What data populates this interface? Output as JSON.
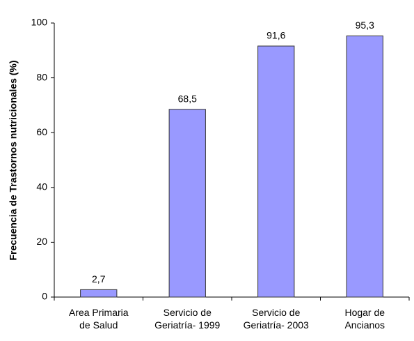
{
  "chart_data": {
    "type": "bar",
    "y_label": "Frecuencia de Trastornos nutricionales (%)",
    "categories": [
      "Area Primaria\nde Salud",
      "Servicio de\nGeriatría- 1999",
      "Servicio de\nGeriatría- 2003",
      "Hogar de\nAncianos"
    ],
    "values": [
      2.7,
      68.5,
      91.6,
      95.3
    ],
    "value_labels": [
      "2,7",
      "68,5",
      "91,6",
      "95,3"
    ],
    "color": "#9999ff",
    "ylim": [
      0,
      100
    ],
    "yticks": [
      0,
      20,
      40,
      60,
      80,
      100
    ],
    "grid": false
  }
}
